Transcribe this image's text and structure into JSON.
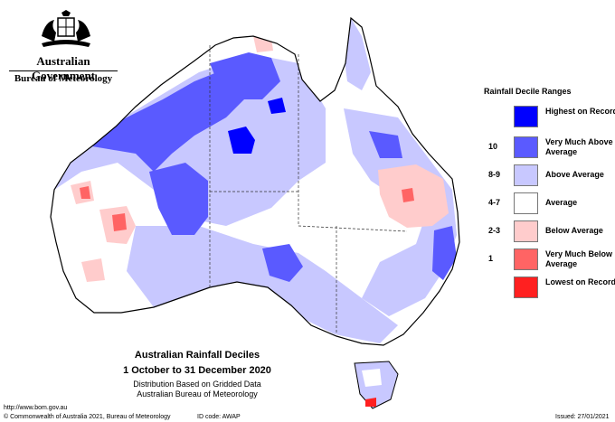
{
  "header": {
    "gov_title": "Australian Government",
    "agency": "Bureau of Meteorology"
  },
  "legend": {
    "title": "Rainfall Decile Ranges",
    "items": [
      {
        "code": "",
        "label": "Highest on Record",
        "color": "#0000ff"
      },
      {
        "code": "10",
        "label": "Very Much Above Average",
        "color": "#5a5aff"
      },
      {
        "code": "8-9",
        "label": "Above Average",
        "color": "#c8c8ff"
      },
      {
        "code": "4-7",
        "label": "Average",
        "color": "#ffffff"
      },
      {
        "code": "2-3",
        "label": "Below Average",
        "color": "#ffcccc"
      },
      {
        "code": "1",
        "label": "Very Much Below Average",
        "color": "#ff6464"
      },
      {
        "code": "",
        "label": "Lowest on Record",
        "color": "#ff2020"
      }
    ]
  },
  "map": {
    "title": "Australian Rainfall Deciles",
    "period": "1 October to 31 December 2020",
    "subtitle1": "Distribution Based on Gridded Data",
    "subtitle2": "Australian Bureau of Meteorology"
  },
  "footer": {
    "url": "http://www.bom.gov.au",
    "copyright": "© Commonwealth of Australia 2021, Bureau of Meteorology",
    "id_code": "ID code: AWAP",
    "issued": "Issued: 27/01/2021"
  }
}
